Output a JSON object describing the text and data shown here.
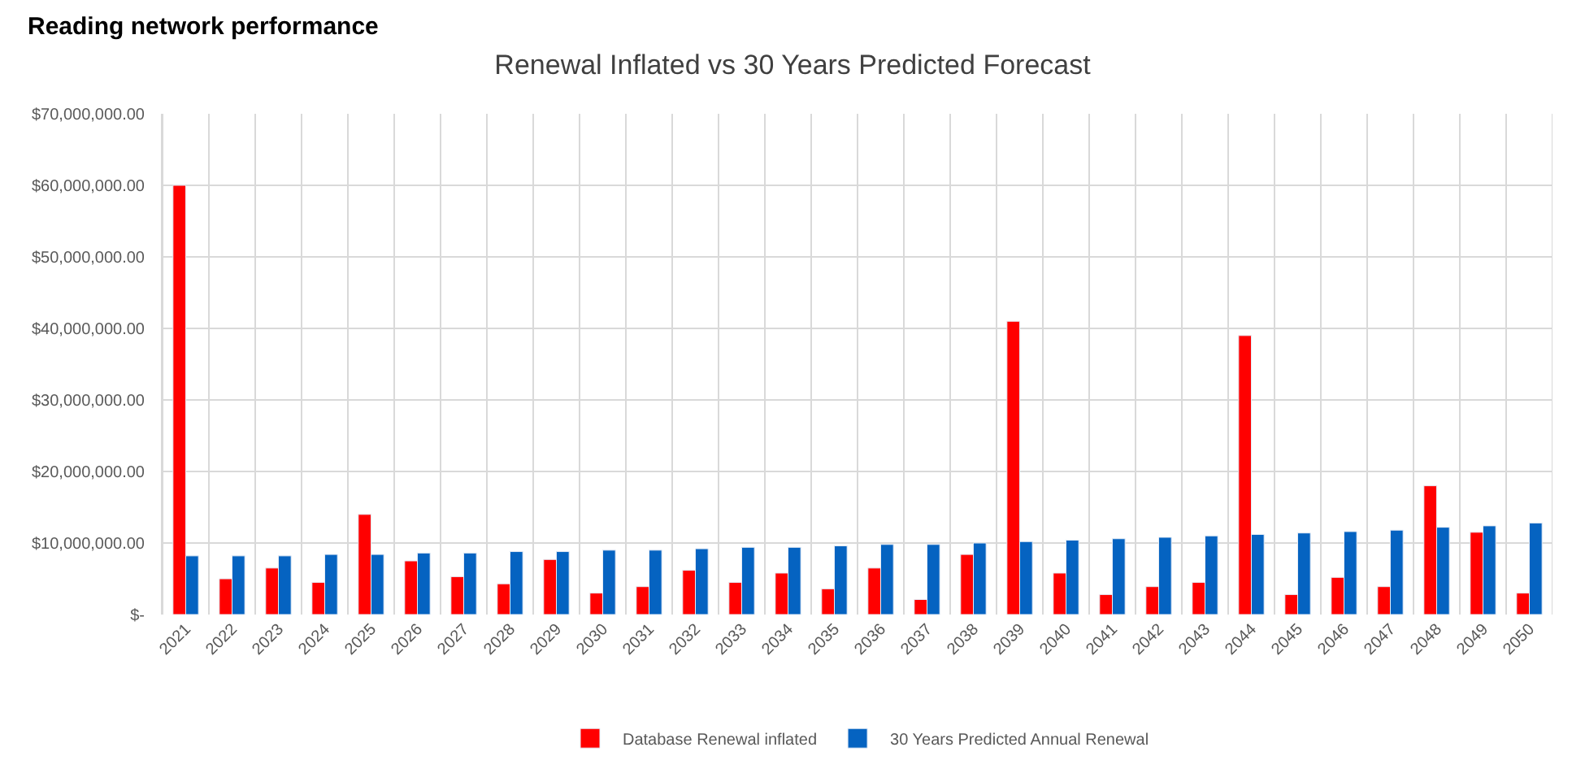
{
  "chart_data": {
    "type": "bar",
    "title": "Renewal Inflated vs 30 Years Predicted Forecast",
    "annotations": [
      "Reading network performance"
    ],
    "categories": [
      "2021",
      "2022",
      "2023",
      "2024",
      "2025",
      "2026",
      "2027",
      "2028",
      "2029",
      "2030",
      "2031",
      "2032",
      "2033",
      "2034",
      "2035",
      "2036",
      "2037",
      "2038",
      "2039",
      "2040",
      "2041",
      "2042",
      "2043",
      "2044",
      "2045",
      "2046",
      "2047",
      "2048",
      "2049",
      "2050"
    ],
    "series": [
      {
        "name": "Database Renewal inflated",
        "color": "#ff0000",
        "values": [
          60000000,
          5000000,
          6500000,
          4500000,
          14000000,
          7500000,
          5300000,
          4300000,
          7700000,
          3000000,
          3900000,
          6200000,
          4500000,
          5800000,
          3600000,
          6500000,
          2100000,
          8400000,
          41000000,
          5800000,
          2800000,
          3900000,
          4500000,
          39000000,
          2800000,
          5200000,
          3900000,
          18000000,
          11500000,
          3000000
        ]
      },
      {
        "name": "30 Years Predicted Annual Renewal",
        "color": "#0563c1",
        "values": [
          8200000,
          8200000,
          8200000,
          8400000,
          8400000,
          8600000,
          8600000,
          8800000,
          8800000,
          9000000,
          9000000,
          9200000,
          9400000,
          9400000,
          9600000,
          9800000,
          9800000,
          10000000,
          10200000,
          10400000,
          10600000,
          10800000,
          11000000,
          11200000,
          11400000,
          11600000,
          11800000,
          12200000,
          12400000,
          12800000
        ]
      }
    ],
    "ylim": [
      0,
      70000000
    ],
    "yticks": [
      {
        "value": 0,
        "label": "$-"
      },
      {
        "value": 10000000,
        "label": "$10,000,000.00"
      },
      {
        "value": 20000000,
        "label": "$20,000,000.00"
      },
      {
        "value": 30000000,
        "label": "$30,000,000.00"
      },
      {
        "value": 40000000,
        "label": "$40,000,000.00"
      },
      {
        "value": 50000000,
        "label": "$50,000,000.00"
      },
      {
        "value": 60000000,
        "label": "$60,000,000.00"
      },
      {
        "value": 70000000,
        "label": "$70,000,000.00"
      }
    ],
    "grid": true,
    "legend": "bottom"
  }
}
